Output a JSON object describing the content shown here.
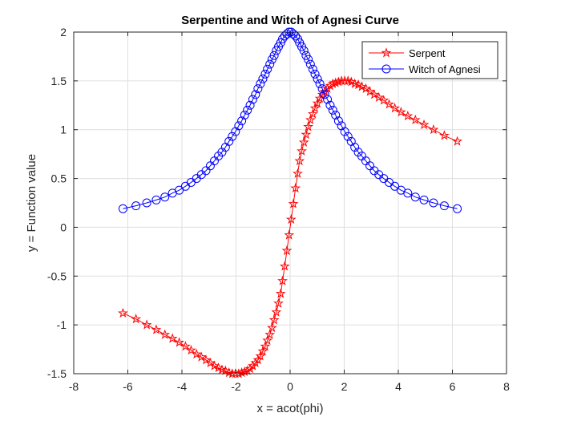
{
  "chart_data": {
    "type": "line",
    "title": "Serpentine and Witch of Agnesi Curve",
    "xlabel": "x = acot(phi)",
    "ylabel": "y = Function value",
    "xlim": [
      -8,
      8
    ],
    "ylim": [
      -1.5,
      2
    ],
    "xticks": [
      -8,
      -6,
      -4,
      -2,
      0,
      2,
      4,
      6,
      8
    ],
    "yticks": [
      -1.5,
      -1,
      -0.5,
      0,
      0.5,
      1,
      1.5,
      2
    ],
    "xtick_labels": [
      "-8",
      "-6",
      "-4",
      "-2",
      "0",
      "2",
      "4",
      "6",
      "8"
    ],
    "ytick_labels": [
      "-1.5",
      "-1",
      "-0.5",
      "0",
      "0.5",
      "1",
      "1.5",
      "2"
    ],
    "grid": true,
    "legend_position": "top-right",
    "series": [
      {
        "name": "Serpent",
        "color": "#ff0000",
        "marker": "pentagram",
        "points": [
          [
            -6.18,
            -0.88
          ],
          [
            -5.7,
            -0.94
          ],
          [
            -5.3,
            -1.0
          ],
          [
            -4.95,
            -1.05
          ],
          [
            -4.63,
            -1.1
          ],
          [
            -4.35,
            -1.14
          ],
          [
            -4.1,
            -1.18
          ],
          [
            -3.87,
            -1.22
          ],
          [
            -3.66,
            -1.26
          ],
          [
            -3.46,
            -1.3
          ],
          [
            -3.28,
            -1.33
          ],
          [
            -3.11,
            -1.36
          ],
          [
            -2.95,
            -1.39
          ],
          [
            -2.8,
            -1.42
          ],
          [
            -2.65,
            -1.44
          ],
          [
            -2.52,
            -1.46
          ],
          [
            -2.39,
            -1.47
          ],
          [
            -2.26,
            -1.49
          ],
          [
            -2.14,
            -1.5
          ],
          [
            -2.02,
            -1.5
          ],
          [
            -1.9,
            -1.5
          ],
          [
            -1.79,
            -1.49
          ],
          [
            -1.68,
            -1.48
          ],
          [
            -1.58,
            -1.47
          ],
          [
            -1.48,
            -1.45
          ],
          [
            -1.38,
            -1.42
          ],
          [
            -1.28,
            -1.39
          ],
          [
            -1.19,
            -1.36
          ],
          [
            -1.1,
            -1.32
          ],
          [
            -1.01,
            -1.27
          ],
          [
            -0.92,
            -1.22
          ],
          [
            -0.84,
            -1.16
          ],
          [
            -0.75,
            -1.1
          ],
          [
            -0.67,
            -1.03
          ],
          [
            -0.59,
            -0.95
          ],
          [
            -0.51,
            -0.87
          ],
          [
            -0.43,
            -0.78
          ],
          [
            -0.35,
            -0.68
          ],
          [
            -0.28,
            -0.55
          ],
          [
            -0.2,
            -0.4
          ],
          [
            -0.12,
            -0.24
          ],
          [
            -0.04,
            -0.08
          ],
          [
            0.04,
            0.08
          ],
          [
            0.12,
            0.24
          ],
          [
            0.2,
            0.4
          ],
          [
            0.28,
            0.55
          ],
          [
            0.35,
            0.68
          ],
          [
            0.43,
            0.78
          ],
          [
            0.51,
            0.87
          ],
          [
            0.59,
            0.95
          ],
          [
            0.67,
            1.03
          ],
          [
            0.75,
            1.1
          ],
          [
            0.84,
            1.16
          ],
          [
            0.92,
            1.22
          ],
          [
            1.01,
            1.27
          ],
          [
            1.1,
            1.32
          ],
          [
            1.19,
            1.36
          ],
          [
            1.28,
            1.39
          ],
          [
            1.38,
            1.42
          ],
          [
            1.48,
            1.45
          ],
          [
            1.58,
            1.47
          ],
          [
            1.68,
            1.48
          ],
          [
            1.79,
            1.49
          ],
          [
            1.9,
            1.5
          ],
          [
            2.02,
            1.5
          ],
          [
            2.14,
            1.5
          ],
          [
            2.26,
            1.49
          ],
          [
            2.39,
            1.47
          ],
          [
            2.52,
            1.46
          ],
          [
            2.65,
            1.44
          ],
          [
            2.8,
            1.42
          ],
          [
            2.95,
            1.39
          ],
          [
            3.11,
            1.36
          ],
          [
            3.28,
            1.33
          ],
          [
            3.46,
            1.3
          ],
          [
            3.66,
            1.26
          ],
          [
            3.87,
            1.22
          ],
          [
            4.1,
            1.18
          ],
          [
            4.35,
            1.14
          ],
          [
            4.63,
            1.1
          ],
          [
            4.95,
            1.05
          ],
          [
            5.3,
            1.0
          ],
          [
            5.7,
            0.94
          ],
          [
            6.18,
            0.88
          ]
        ]
      },
      {
        "name": "Witch of Agnesi",
        "color": "#0000ff",
        "marker": "circle",
        "points": [
          [
            -6.18,
            0.19
          ],
          [
            -5.7,
            0.22
          ],
          [
            -5.3,
            0.25
          ],
          [
            -4.95,
            0.28
          ],
          [
            -4.63,
            0.31
          ],
          [
            -4.35,
            0.35
          ],
          [
            -4.1,
            0.38
          ],
          [
            -3.87,
            0.42
          ],
          [
            -3.66,
            0.46
          ],
          [
            -3.46,
            0.5
          ],
          [
            -3.28,
            0.54
          ],
          [
            -3.11,
            0.58
          ],
          [
            -2.95,
            0.63
          ],
          [
            -2.8,
            0.68
          ],
          [
            -2.65,
            0.73
          ],
          [
            -2.52,
            0.77
          ],
          [
            -2.39,
            0.82
          ],
          [
            -2.26,
            0.88
          ],
          [
            -2.14,
            0.93
          ],
          [
            -2.02,
            0.98
          ],
          [
            -1.9,
            1.04
          ],
          [
            -1.79,
            1.09
          ],
          [
            -1.68,
            1.15
          ],
          [
            -1.58,
            1.2
          ],
          [
            -1.48,
            1.25
          ],
          [
            -1.38,
            1.31
          ],
          [
            -1.28,
            1.36
          ],
          [
            -1.19,
            1.42
          ],
          [
            -1.1,
            1.47
          ],
          [
            -1.01,
            1.52
          ],
          [
            -0.92,
            1.57
          ],
          [
            -0.84,
            1.62
          ],
          [
            -0.75,
            1.67
          ],
          [
            -0.67,
            1.72
          ],
          [
            -0.59,
            1.76
          ],
          [
            -0.51,
            1.81
          ],
          [
            -0.43,
            1.85
          ],
          [
            -0.35,
            1.89
          ],
          [
            -0.28,
            1.93
          ],
          [
            -0.2,
            1.96
          ],
          [
            -0.12,
            1.98
          ],
          [
            -0.04,
            2.0
          ],
          [
            0.04,
            2.0
          ],
          [
            0.12,
            1.98
          ],
          [
            0.2,
            1.96
          ],
          [
            0.28,
            1.93
          ],
          [
            0.35,
            1.89
          ],
          [
            0.43,
            1.85
          ],
          [
            0.51,
            1.81
          ],
          [
            0.59,
            1.76
          ],
          [
            0.67,
            1.72
          ],
          [
            0.75,
            1.67
          ],
          [
            0.84,
            1.62
          ],
          [
            0.92,
            1.57
          ],
          [
            1.01,
            1.52
          ],
          [
            1.1,
            1.47
          ],
          [
            1.19,
            1.42
          ],
          [
            1.28,
            1.36
          ],
          [
            1.38,
            1.31
          ],
          [
            1.48,
            1.25
          ],
          [
            1.58,
            1.2
          ],
          [
            1.68,
            1.15
          ],
          [
            1.79,
            1.09
          ],
          [
            1.9,
            1.04
          ],
          [
            2.02,
            0.98
          ],
          [
            2.14,
            0.93
          ],
          [
            2.26,
            0.88
          ],
          [
            2.39,
            0.82
          ],
          [
            2.52,
            0.77
          ],
          [
            2.65,
            0.73
          ],
          [
            2.8,
            0.68
          ],
          [
            2.95,
            0.63
          ],
          [
            3.11,
            0.58
          ],
          [
            3.28,
            0.54
          ],
          [
            3.46,
            0.5
          ],
          [
            3.66,
            0.46
          ],
          [
            3.87,
            0.42
          ],
          [
            4.1,
            0.38
          ],
          [
            4.35,
            0.35
          ],
          [
            4.63,
            0.31
          ],
          [
            4.95,
            0.28
          ],
          [
            5.3,
            0.25
          ],
          [
            5.7,
            0.22
          ],
          [
            6.18,
            0.19
          ]
        ]
      }
    ]
  }
}
